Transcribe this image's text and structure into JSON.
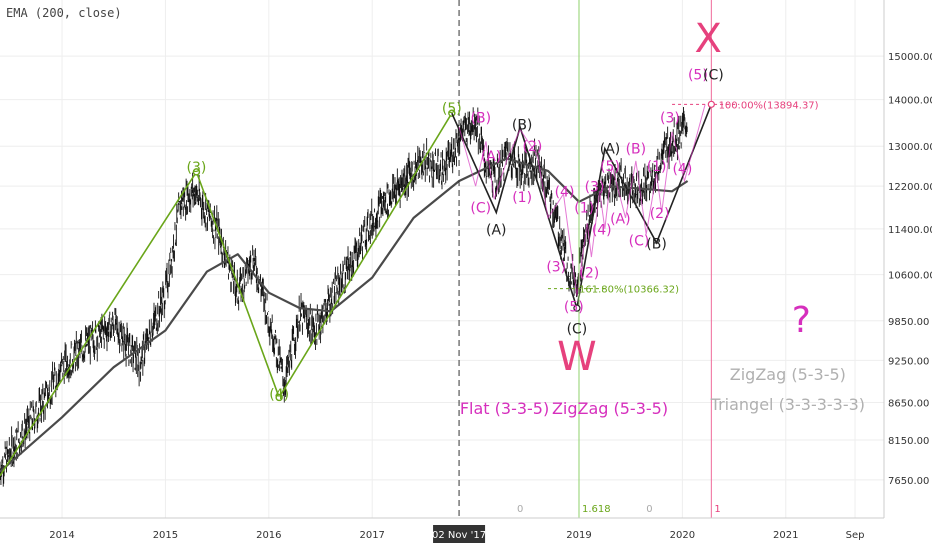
{
  "indicator": {
    "label": "EMA (200, close)"
  },
  "colors": {
    "price": "#111111",
    "ema": "#4a4a4a",
    "green": "#6aa61a",
    "magenta": "#d62fbd",
    "black_wave": "#222222",
    "pink": "#e6417d",
    "gray_text": "#b0b0b0",
    "axis_text": "#333333",
    "grid": "#eeeeee",
    "vline_green": "#8fd16b",
    "vline_pink": "#ef6a9a"
  },
  "chart_data": {
    "type": "line",
    "instrument_note": "",
    "x_axis": {
      "ticks": [
        "2014",
        "2015",
        "2016",
        "2017",
        "2019",
        "2020",
        "2021",
        "Sep"
      ],
      "tick_x": [
        2014.0,
        2015.0,
        2016.0,
        2017.0,
        2019.0,
        2020.0,
        2021.0,
        2021.67
      ],
      "cursor_label": "02 Nov '17",
      "cursor_x": 2017.84,
      "range": [
        2013.4,
        2021.95
      ]
    },
    "y_axis": {
      "ticks": [
        7650,
        8150,
        8650,
        9250,
        9850,
        10600,
        11400,
        12200,
        13000,
        14000,
        15000
      ],
      "tick_labels": [
        "7650.00",
        "8150.00",
        "8650.00",
        "9250.00",
        "9850.00",
        "10600.00",
        "11400.00",
        "12200.00",
        "13000.00",
        "14000.00",
        "15000.00"
      ],
      "scale": "log",
      "range": [
        7200,
        16400
      ]
    },
    "series": [
      {
        "kind": "price",
        "x": [
          2013.4,
          2013.6,
          2013.8,
          2014.0,
          2014.25,
          2014.5,
          2014.75,
          2014.85,
          2015.0,
          2015.15,
          2015.28,
          2015.5,
          2015.7,
          2015.85,
          2016.05,
          2016.15,
          2016.3,
          2016.45,
          2016.6,
          2016.8,
          2016.95,
          2017.1,
          2017.3,
          2017.5,
          2017.7,
          2017.84,
          2018.0,
          2018.1,
          2018.2,
          2018.3,
          2018.45,
          2018.6,
          2018.75,
          2018.9,
          2018.98,
          2019.1,
          2019.25,
          2019.4,
          2019.55,
          2019.7,
          2019.85,
          2019.95,
          2020.05
        ],
        "y": [
          7800,
          8200,
          8600,
          9150,
          9500,
          9800,
          9200,
          9650,
          10300,
          11900,
          12100,
          11400,
          10300,
          10900,
          9600,
          8900,
          9950,
          9700,
          10200,
          10800,
          11400,
          11850,
          12300,
          12700,
          12500,
          13200,
          13600,
          12600,
          12300,
          12900,
          12500,
          12700,
          11800,
          10700,
          10500,
          11700,
          12200,
          12300,
          12150,
          12300,
          13000,
          13200,
          13500
        ]
      },
      {
        "kind": "ema",
        "x": [
          2013.4,
          2014.0,
          2014.5,
          2015.0,
          2015.4,
          2015.7,
          2016.0,
          2016.3,
          2016.6,
          2017.0,
          2017.4,
          2017.84,
          2018.3,
          2018.7,
          2019.0,
          2019.3,
          2019.6,
          2019.9,
          2020.05
        ],
        "y": [
          7750,
          8450,
          9150,
          9700,
          10650,
          10950,
          10300,
          10050,
          10000,
          10550,
          11600,
          12300,
          12750,
          12500,
          11900,
          12200,
          12150,
          12100,
          12300
        ]
      }
    ],
    "wave_labels": [
      {
        "text": "(3)",
        "x": 2015.3,
        "y": 12480,
        "color": "green"
      },
      {
        "text": "(4)",
        "x": 2016.1,
        "y": 8700,
        "color": "green"
      },
      {
        "text": "(5)",
        "x": 2017.77,
        "y": 13700,
        "color": "green"
      },
      {
        "text": "(B)",
        "x": 2018.05,
        "y": 13500,
        "color": "magenta"
      },
      {
        "text": "(A)",
        "x": 2018.15,
        "y": 12700,
        "color": "magenta"
      },
      {
        "text": "(C)",
        "x": 2018.05,
        "y": 11700,
        "color": "magenta"
      },
      {
        "text": "(A)",
        "x": 2018.2,
        "y": 11300,
        "color": "black_wave"
      },
      {
        "text": "(B)",
        "x": 2018.45,
        "y": 13350,
        "color": "black_wave"
      },
      {
        "text": "(2)",
        "x": 2018.55,
        "y": 12900,
        "color": "magenta"
      },
      {
        "text": "(1)",
        "x": 2018.45,
        "y": 11900,
        "color": "magenta"
      },
      {
        "text": "(3)",
        "x": 2018.78,
        "y": 10650,
        "color": "magenta"
      },
      {
        "text": "(4)",
        "x": 2018.86,
        "y": 12000,
        "color": "magenta"
      },
      {
        "text": "(5)",
        "x": 2018.95,
        "y": 10000,
        "color": "magenta"
      },
      {
        "text": "(C)",
        "x": 2018.98,
        "y": 9650,
        "color": "black_wave"
      },
      {
        "text": "(1)",
        "x": 2019.05,
        "y": 11700,
        "color": "magenta"
      },
      {
        "text": "(2)",
        "x": 2019.1,
        "y": 10550,
        "color": "magenta"
      },
      {
        "text": "(3)",
        "x": 2019.15,
        "y": 12100,
        "color": "magenta"
      },
      {
        "text": "(4)",
        "x": 2019.22,
        "y": 11300,
        "color": "magenta"
      },
      {
        "text": "(A)",
        "x": 2019.3,
        "y": 12850,
        "color": "black_wave"
      },
      {
        "text": "(5)",
        "x": 2019.3,
        "y": 12500,
        "color": "magenta"
      },
      {
        "text": "(B)",
        "x": 2019.55,
        "y": 12850,
        "color": "magenta"
      },
      {
        "text": "(A)",
        "x": 2019.4,
        "y": 11500,
        "color": "magenta"
      },
      {
        "text": "(C)",
        "x": 2019.58,
        "y": 11100,
        "color": "magenta"
      },
      {
        "text": "(B)",
        "x": 2019.75,
        "y": 11050,
        "color": "black_wave"
      },
      {
        "text": "(1)",
        "x": 2019.75,
        "y": 12500,
        "color": "magenta"
      },
      {
        "text": "(2)",
        "x": 2019.78,
        "y": 11600,
        "color": "magenta"
      },
      {
        "text": "(3)",
        "x": 2019.88,
        "y": 13500,
        "color": "magenta"
      },
      {
        "text": "(4)",
        "x": 2020.0,
        "y": 12450,
        "color": "magenta"
      },
      {
        "text": "(5)",
        "x": 2020.15,
        "y": 14450,
        "color": "magenta"
      },
      {
        "text": "(C)",
        "x": 2020.3,
        "y": 14450,
        "color": "black_wave"
      }
    ],
    "annotations": [
      {
        "text": "100.00%(13894.37)",
        "kind": "fib_top"
      },
      {
        "text": "161.80%(10366.32)",
        "kind": "fib_bottom"
      },
      {
        "text": "X",
        "kind": "big_pink"
      },
      {
        "text": "W",
        "kind": "big_pink"
      },
      {
        "text": "?",
        "kind": "question"
      },
      {
        "text": "Flat (3-3-5)",
        "kind": "pattern_magenta"
      },
      {
        "text": "ZigZag (5-3-5)",
        "kind": "pattern_magenta"
      },
      {
        "text": "ZigZag (5-3-5)",
        "kind": "pattern_gray"
      },
      {
        "text": "Triangel (3-3-3-3-3)",
        "kind": "pattern_gray"
      },
      {
        "text": "1.618",
        "kind": "vline_green_label"
      },
      {
        "text": "1",
        "kind": "vline_pink_label"
      },
      {
        "text": "0",
        "kind": "zero_label"
      },
      {
        "text": "0",
        "kind": "zero_label"
      }
    ]
  }
}
